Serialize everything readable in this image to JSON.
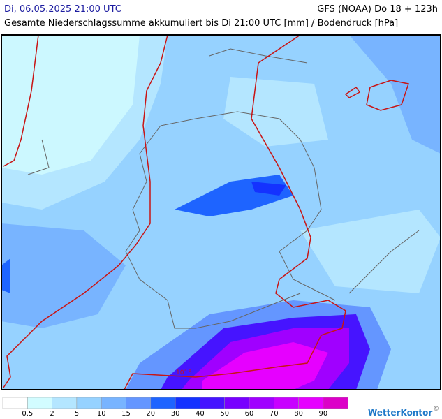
{
  "header": {
    "date": "Di, 06.05.2025 21:00 UTC",
    "model": "GFS (NOAA) Do 18 + 123h",
    "subtitle": "Gesamte Niederschlagssumme akkumuliert bis Di 21:00 UTC [mm] / Bodendruck [hPa]"
  },
  "map": {
    "isobar_label": "1015"
  },
  "legend": {
    "thresholds": [
      0.5,
      2,
      5,
      10,
      15,
      20,
      30,
      40,
      50,
      60,
      70,
      80,
      90
    ],
    "colors": [
      "#ffffff",
      "#d2fcff",
      "#b4e6ff",
      "#96d2ff",
      "#78b4ff",
      "#6496ff",
      "#1e64ff",
      "#1432ff",
      "#4614ff",
      "#7800ff",
      "#a000ff",
      "#c800ff",
      "#e600ff",
      "#dc00c8"
    ]
  },
  "brand": "WetterKontor",
  "copyright": "©"
}
